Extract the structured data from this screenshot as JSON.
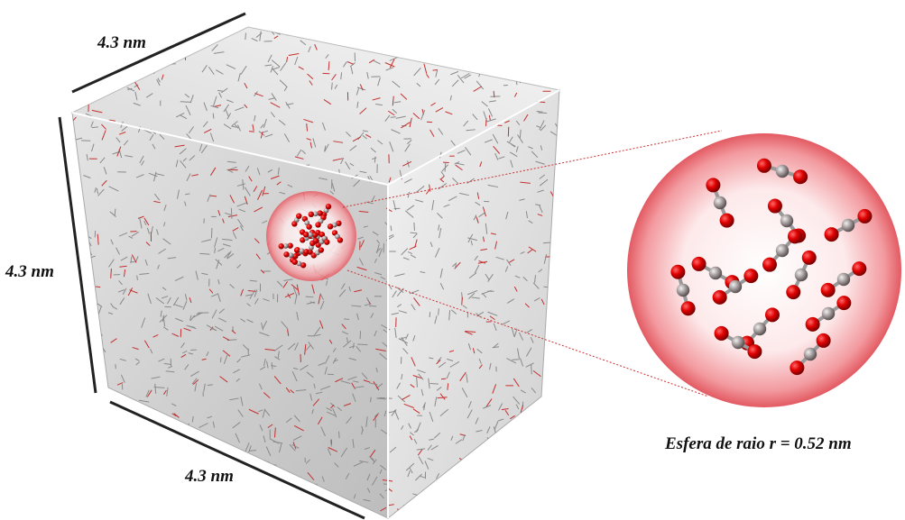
{
  "labels": {
    "top_edge": "4.3 nm",
    "left_edge": "4.3 nm",
    "bottom_edge": "4.3 nm",
    "sphere_caption": "Esfera de raio r = 0.52 nm"
  }
}
